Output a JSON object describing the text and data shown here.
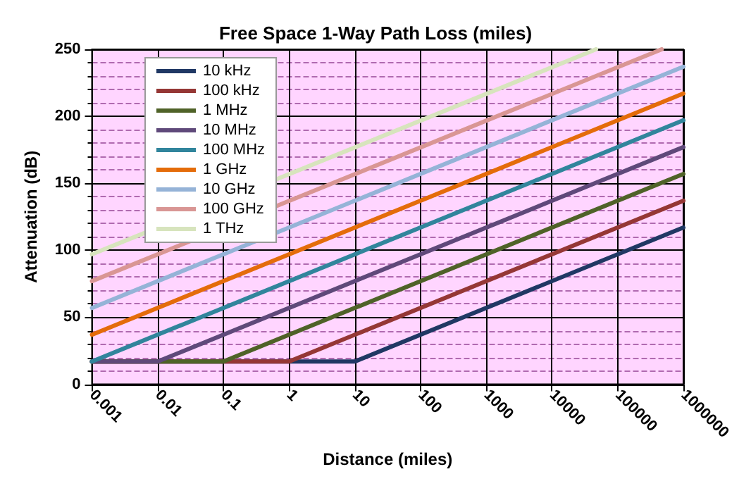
{
  "chart_data": {
    "type": "line",
    "title": "Free Space 1-Way Path Loss (miles)",
    "xlabel": "Distance (miles)",
    "ylabel": "Attenuation (dB)",
    "log": "x",
    "xlim": [
      0.001,
      1000000
    ],
    "xticks": [
      0.001,
      0.01,
      0.1,
      1,
      10,
      100,
      1000,
      10000,
      100000,
      1000000
    ],
    "ylim": [
      0,
      250
    ],
    "yticks": [
      0,
      {
        "value": 10,
        "label": null
      },
      {
        "value": 20,
        "label": null
      },
      {
        "value": 30,
        "label": null
      },
      {
        "value": 40,
        "label": null
      },
      50,
      {
        "value": 60,
        "label": null
      },
      {
        "value": 70,
        "label": null
      },
      {
        "value": 80,
        "label": null
      },
      {
        "value": 90,
        "label": null
      },
      100,
      {
        "value": 110,
        "label": null
      },
      {
        "value": 120,
        "label": null
      },
      {
        "value": 130,
        "label": null
      },
      {
        "value": 140,
        "label": null
      },
      150,
      {
        "value": 160,
        "label": null
      },
      {
        "value": 170,
        "label": null
      },
      {
        "value": 180,
        "label": null
      },
      {
        "value": 190,
        "label": null
      },
      200,
      {
        "value": 210,
        "label": null
      },
      {
        "value": 220,
        "label": null
      },
      {
        "value": 230,
        "label": null
      },
      {
        "value": 240,
        "label": null
      },
      250
    ],
    "grid": true,
    "legend": "top left",
    "marker": "none",
    "line_style": "solid",
    "series": [
      {
        "name": "10 kHz",
        "color": "#203864",
        "x": [
          0.001,
          10,
          1000000
        ],
        "values": [
          17,
          17,
          117
        ]
      },
      {
        "name": "100 kHz",
        "color": "#953735",
        "x": [
          0.001,
          1,
          1000000
        ],
        "values": [
          17,
          17,
          137
        ]
      },
      {
        "name": "1 MHz",
        "color": "#4f6228",
        "x": [
          0.001,
          0.1,
          1000000
        ],
        "values": [
          17,
          17,
          157
        ]
      },
      {
        "name": "10 MHz",
        "color": "#5f497a",
        "x": [
          0.001,
          0.01,
          1000000
        ],
        "values": [
          17,
          17,
          177
        ]
      },
      {
        "name": "100 MHz",
        "color": "#31859c",
        "x": [
          0.001,
          1000000
        ],
        "values": [
          17,
          197
        ]
      },
      {
        "name": "1 GHz",
        "color": "#e46c0a",
        "x": [
          0.001,
          1000000
        ],
        "values": [
          37,
          217
        ]
      },
      {
        "name": "10 GHz",
        "color": "#95b3d7",
        "x": [
          0.001,
          1000000
        ],
        "values": [
          57,
          237
        ]
      },
      {
        "name": "100 GHz",
        "color": "#d99694",
        "x": [
          0.001,
          468000
        ],
        "values": [
          77,
          250
        ]
      },
      {
        "name": "1 THz",
        "color": "#d7e4bd",
        "x": [
          0.001,
          46800
        ],
        "values": [
          97,
          250
        ]
      }
    ]
  }
}
